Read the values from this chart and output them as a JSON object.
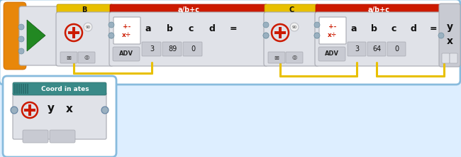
{
  "bg": "#ddeeff",
  "main_bg": "#ffffff",
  "main_border": "#88bbdd",
  "small_bg": "#ffffff",
  "small_border": "#88bbdd",
  "teal": "#3a8a88",
  "orange": "#e8870a",
  "yellow": "#e8c000",
  "red": "#cc1a00",
  "dark_red": "#aa1500",
  "gray_light": "#e0e2e8",
  "gray_mid": "#c8cad2",
  "gray_dark": "#a8aab2",
  "gray_conn": "#9ab0c0",
  "green": "#228822",
  "wire": "#e8c000",
  "white": "#ffffff",
  "text_dark": "#111111",
  "text_red": "#cc1a00",
  "coord_label": "Coord in ates",
  "block_b": "B",
  "block_c": "C",
  "block_abc1": "a/b+c",
  "block_abc2": "a/b+c",
  "adv": "ADV",
  "math1": [
    "a",
    "b",
    "c",
    "d",
    "="
  ],
  "vals1": [
    "3",
    "89",
    "0"
  ],
  "math2": [
    "a",
    "b",
    "c",
    "d",
    "="
  ],
  "vals2": [
    "3",
    "64",
    "0"
  ],
  "y_label": "y",
  "x_label": "x"
}
